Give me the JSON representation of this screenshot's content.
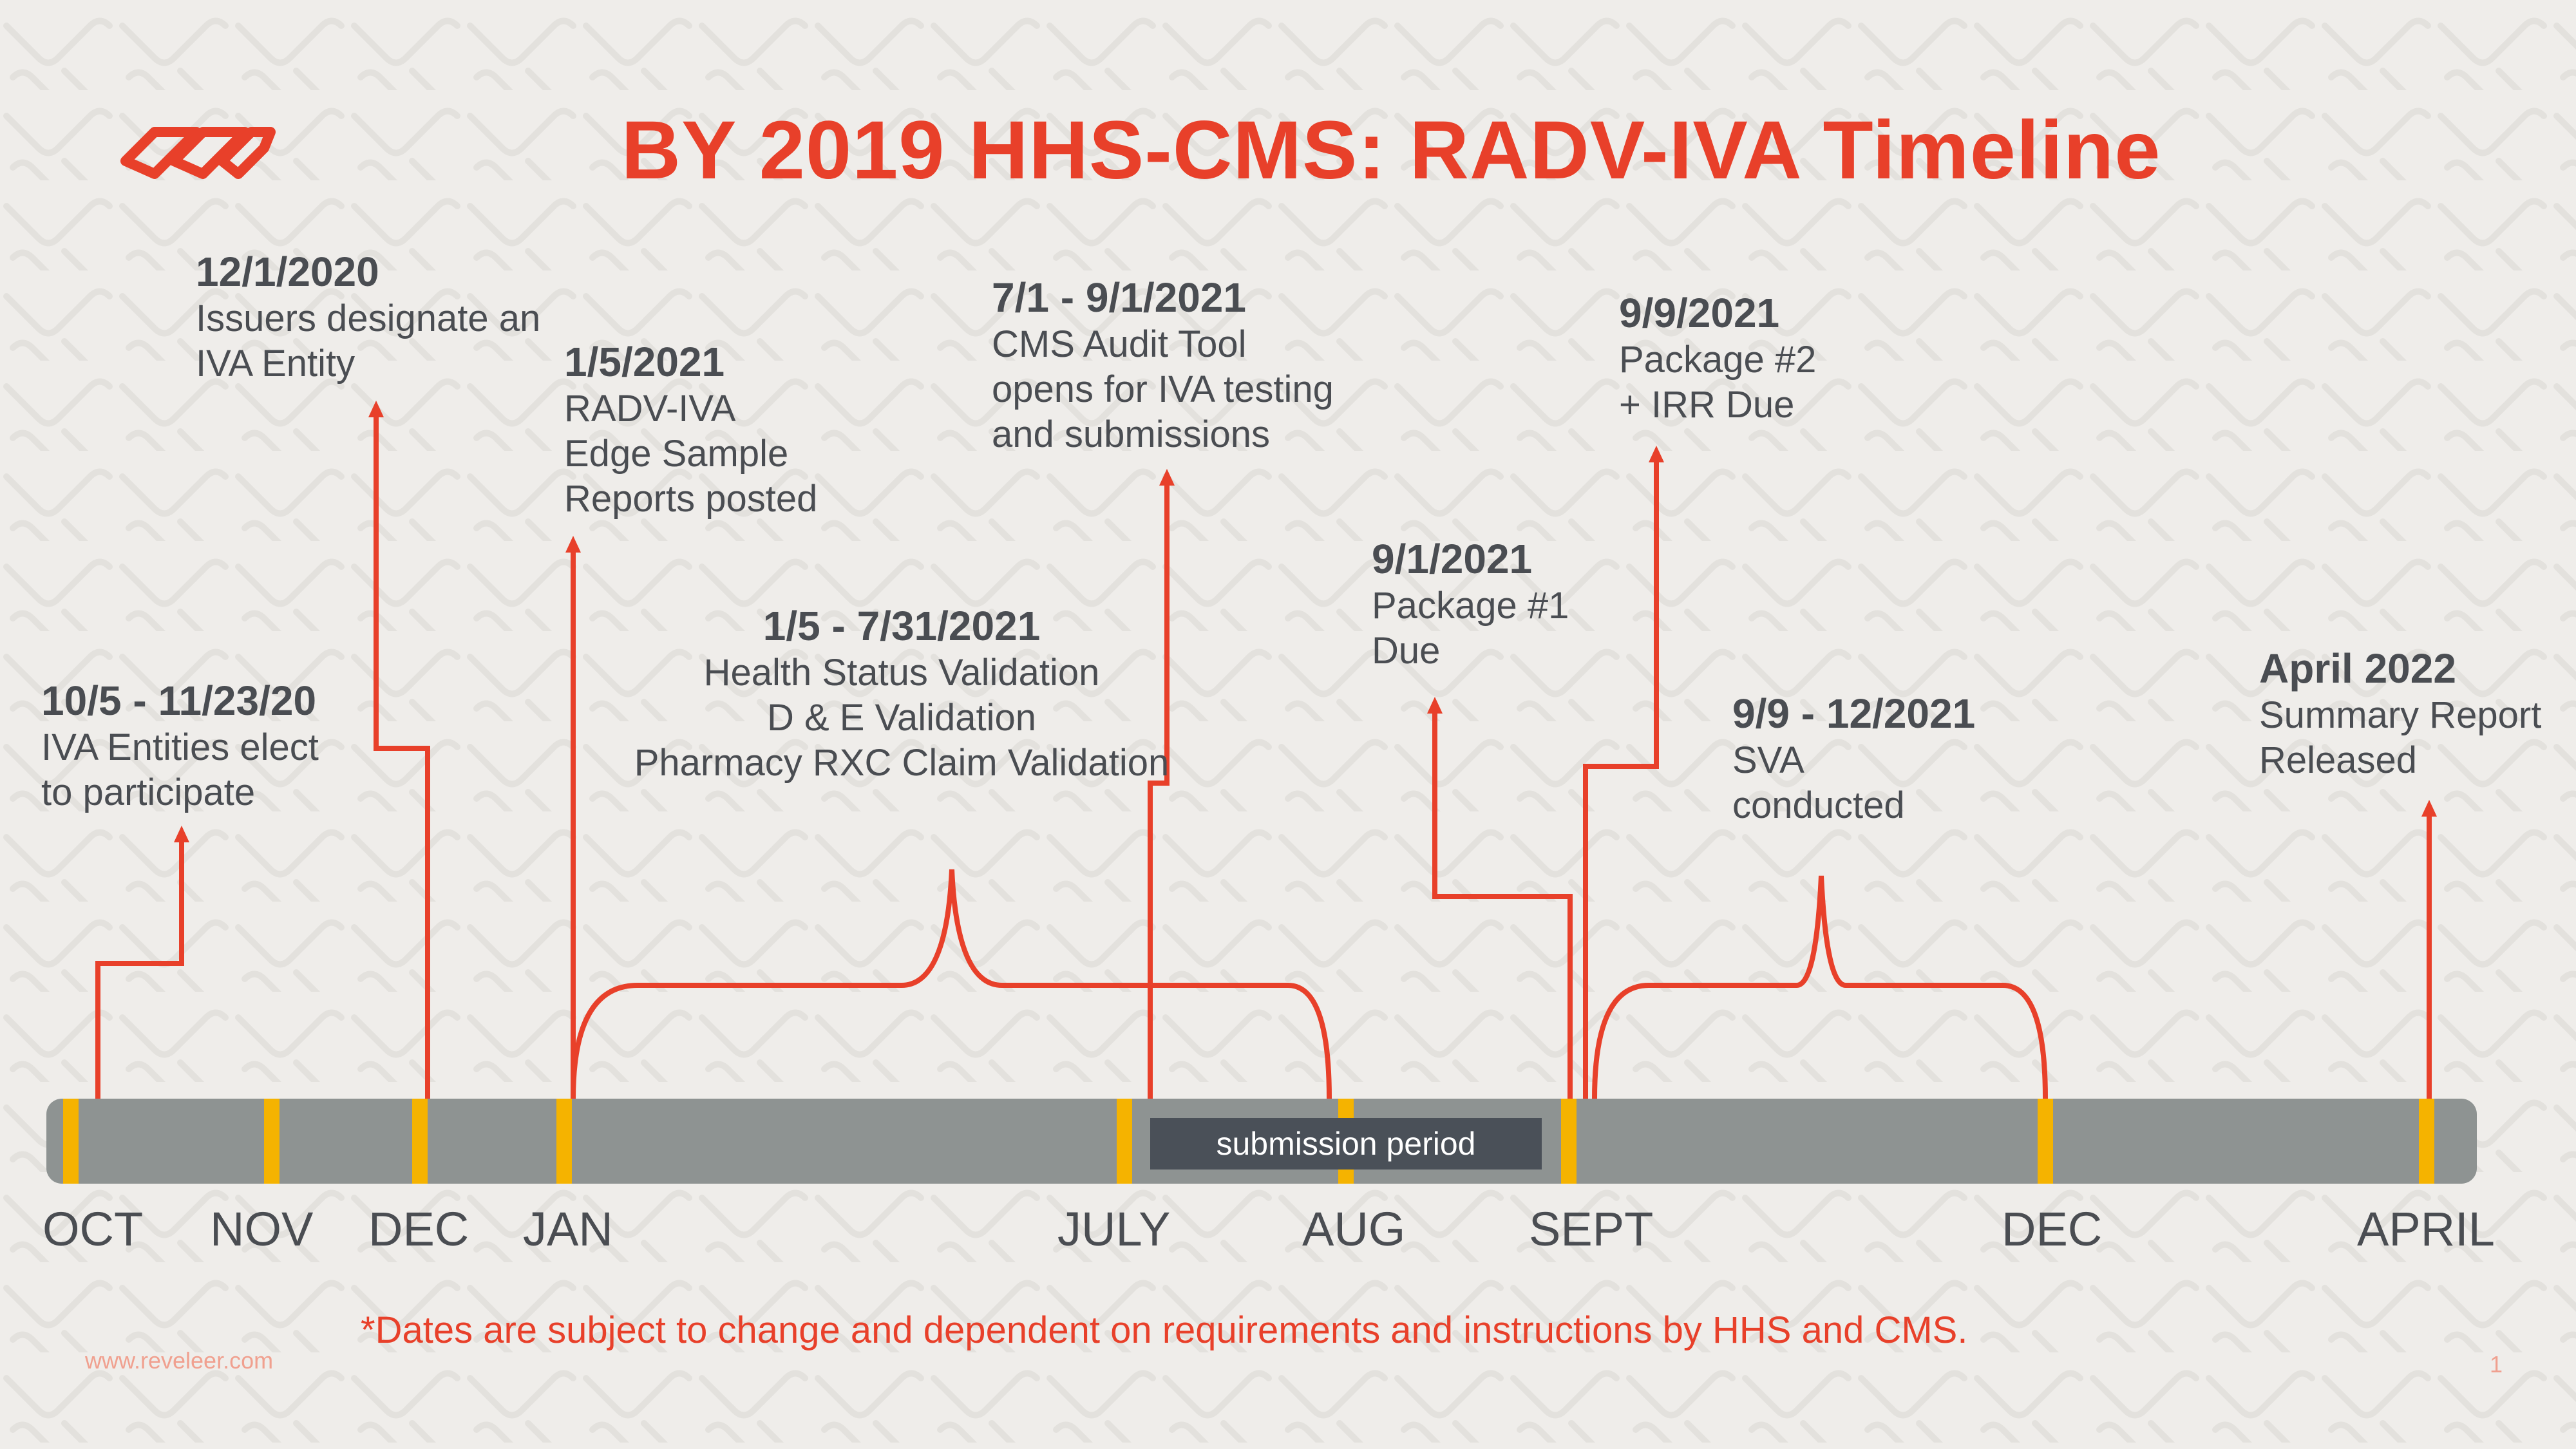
{
  "title": "BY 2019 HHS-CMS: RADV-IVA Timeline",
  "events": [
    {
      "date": "10/5 - 11/23/20",
      "lines": [
        "IVA Entities elect",
        "to participate"
      ]
    },
    {
      "date": "12/1/2020",
      "lines": [
        "Issuers designate an",
        "IVA Entity"
      ]
    },
    {
      "date": "1/5/2021",
      "lines": [
        "RADV-IVA",
        "Edge Sample",
        "Reports posted"
      ]
    },
    {
      "date": "1/5 - 7/31/2021",
      "lines": [
        "Health Status Validation",
        "D & E Validation",
        "Pharmacy RXC Claim Validation"
      ]
    },
    {
      "date": "7/1 - 9/1/2021",
      "lines": [
        "CMS Audit Tool",
        "opens for IVA testing",
        "and submissions"
      ]
    },
    {
      "date": "9/1/2021",
      "lines": [
        "Package #1",
        "Due"
      ]
    },
    {
      "date": "9/9/2021",
      "lines": [
        "Package #2",
        "+ IRR Due"
      ]
    },
    {
      "date": "9/9 - 12/2021",
      "lines": [
        "SVA",
        "conducted"
      ]
    },
    {
      "date": "April 2022",
      "lines": [
        "Summary Report",
        "Released"
      ]
    }
  ],
  "months": [
    "OCT",
    "NOV",
    "DEC",
    "JAN",
    "JULY",
    "AUG",
    "SEPT",
    "DEC",
    "APRIL"
  ],
  "submission_label": "submission period",
  "footnote": "*Dates are subject to change and dependent on requirements and instructions by HHS and CMS.",
  "website": "www.reveleer.com",
  "page_number": "1",
  "colors": {
    "accent": "#e8402a",
    "bar": "#8e9392",
    "tick": "#f5b300",
    "text": "#4a4d52",
    "label_box": "#4a5058"
  }
}
